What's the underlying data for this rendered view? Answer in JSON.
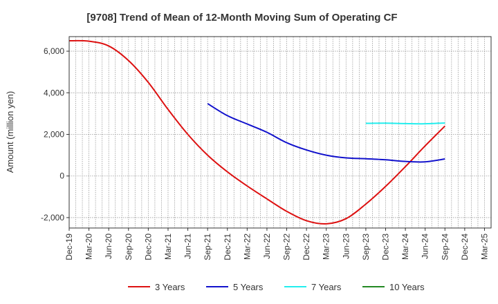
{
  "chart_data": {
    "type": "line",
    "title": "[9708]  Trend of Mean of 12-Month Moving Sum of Operating CF",
    "ylabel": "Amount (million yen)",
    "xlabel": "",
    "ylim": [
      -2500,
      6700
    ],
    "yticks": [
      -2000,
      0,
      2000,
      4000,
      6000
    ],
    "ytick_labels": [
      "-2,000",
      "0",
      "2,000",
      "4,000",
      "6,000"
    ],
    "categories": [
      "Dec-19",
      "Mar-20",
      "Jun-20",
      "Sep-20",
      "Dec-20",
      "Mar-21",
      "Jun-21",
      "Sep-21",
      "Dec-21",
      "Mar-22",
      "Jun-22",
      "Sep-22",
      "Dec-22",
      "Mar-23",
      "Jun-23",
      "Sep-23",
      "Dec-23",
      "Mar-24",
      "Jun-24",
      "Sep-24",
      "Dec-24",
      "Mar-25"
    ],
    "grid": true,
    "legend_position": "bottom",
    "series": [
      {
        "name": "3 Years",
        "color": "#dd1111",
        "values": [
          6500,
          6480,
          6250,
          5550,
          4500,
          3200,
          2000,
          1000,
          200,
          -480,
          -1100,
          -1700,
          -2150,
          -2300,
          -2050,
          -1350,
          -500,
          450,
          1450,
          2400,
          null,
          null
        ]
      },
      {
        "name": "5 Years",
        "color": "#1111cc",
        "values": [
          null,
          null,
          null,
          null,
          null,
          null,
          null,
          3480,
          2900,
          2500,
          2100,
          1600,
          1250,
          1000,
          870,
          830,
          780,
          700,
          680,
          820,
          null,
          null
        ]
      },
      {
        "name": "7 Years",
        "color": "#22eeee",
        "values": [
          null,
          null,
          null,
          null,
          null,
          null,
          null,
          null,
          null,
          null,
          null,
          null,
          null,
          null,
          null,
          2530,
          2540,
          2520,
          2510,
          2550,
          null,
          null
        ]
      },
      {
        "name": "10 Years",
        "color": "#228822",
        "values": [
          null,
          null,
          null,
          null,
          null,
          null,
          null,
          null,
          null,
          null,
          null,
          null,
          null,
          null,
          null,
          null,
          null,
          null,
          null,
          null,
          null,
          null
        ]
      }
    ]
  }
}
